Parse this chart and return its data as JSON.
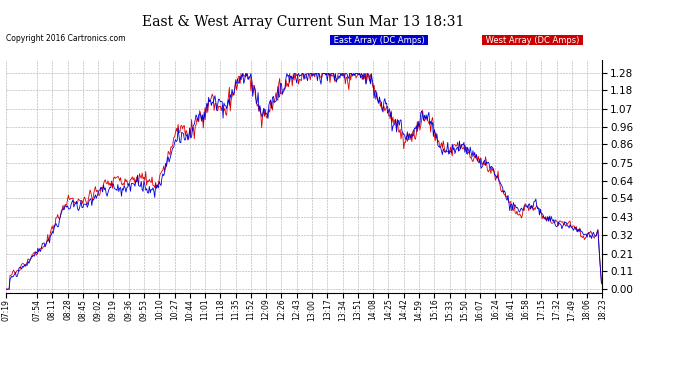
{
  "title": "East & West Array Current Sun Mar 13 18:31",
  "copyright": "Copyright 2016 Cartronics.com",
  "legend_east": "East Array (DC Amps)",
  "legend_west": "West Array (DC Amps)",
  "east_color": "#0000dd",
  "west_color": "#dd0000",
  "legend_east_bg": "#0000cc",
  "legend_west_bg": "#cc0000",
  "background_color": "#ffffff",
  "plot_bg_color": "#ffffff",
  "grid_color": "#aaaaaa",
  "yticks": [
    0.0,
    0.11,
    0.21,
    0.32,
    0.43,
    0.54,
    0.64,
    0.75,
    0.86,
    0.96,
    1.07,
    1.18,
    1.28
  ],
  "ylim": [
    -0.02,
    1.36
  ],
  "xtick_labels": [
    "07:19",
    "07:54",
    "08:11",
    "08:28",
    "08:45",
    "09:02",
    "09:19",
    "09:36",
    "09:53",
    "10:10",
    "10:27",
    "10:44",
    "11:01",
    "11:18",
    "11:35",
    "11:52",
    "12:09",
    "12:26",
    "12:43",
    "13:00",
    "13:17",
    "13:34",
    "13:51",
    "14:08",
    "14:25",
    "14:42",
    "14:59",
    "15:16",
    "15:33",
    "15:50",
    "16:07",
    "16:24",
    "16:41",
    "16:58",
    "17:15",
    "17:32",
    "17:49",
    "18:06",
    "18:23"
  ]
}
